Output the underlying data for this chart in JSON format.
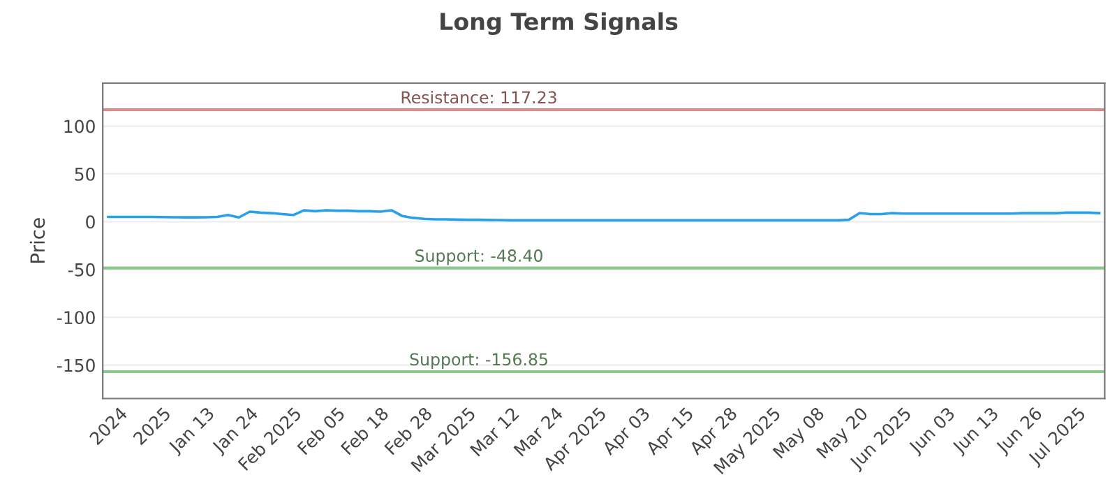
{
  "chart_data": {
    "type": "line",
    "title": "Long Term Signals",
    "ylabel": "Price",
    "categories": [
      null,
      "2024",
      null,
      null,
      null,
      "2025",
      null,
      null,
      null,
      "Jan 13",
      null,
      null,
      null,
      "Jan 24",
      null,
      null,
      null,
      "Feb 2025",
      null,
      null,
      null,
      "Feb 05",
      null,
      null,
      null,
      "Feb 18",
      null,
      null,
      null,
      "Feb 28",
      null,
      null,
      null,
      "Mar 2025",
      null,
      null,
      null,
      "Mar 12",
      null,
      null,
      null,
      "Mar 24",
      null,
      null,
      null,
      "Apr 2025",
      null,
      null,
      null,
      "Apr 03",
      null,
      null,
      null,
      "Apr 15",
      null,
      null,
      null,
      "Apr 28",
      null,
      null,
      null,
      "May 2025",
      null,
      null,
      null,
      "May 08",
      null,
      null,
      null,
      "May 20",
      null,
      null,
      null,
      "Jun 2025",
      null,
      null,
      null,
      "Jun 03",
      null,
      null,
      null,
      "Jun 13",
      null,
      null,
      null,
      "Jun 26",
      null,
      null,
      null,
      "Jul 2025",
      null,
      null
    ],
    "series": [
      {
        "color": "#2aa0e8",
        "values": [
          5,
          5,
          5,
          5,
          5,
          4.8,
          4.7,
          4.6,
          4.6,
          4.7,
          5,
          7,
          4.5,
          10.5,
          9.5,
          9,
          8,
          7,
          12,
          11,
          12,
          11.5,
          11.5,
          11,
          11,
          10.5,
          12,
          6,
          4,
          3,
          2.5,
          2.5,
          2.2,
          2,
          2,
          1.8,
          1.7,
          1.5,
          1.5,
          1.5,
          1.5,
          1.5,
          1.5,
          1.5,
          1.5,
          1.5,
          1.5,
          1.5,
          1.5,
          1.5,
          1.5,
          1.5,
          1.5,
          1.5,
          1.5,
          1.5,
          1.5,
          1.5,
          1.5,
          1.5,
          1.5,
          1.5,
          1.5,
          1.5,
          1.5,
          1.5,
          1.5,
          1.5,
          2,
          9,
          8,
          8,
          9,
          8.5,
          8.5,
          8.5,
          8.5,
          8.5,
          8.5,
          8.5,
          8.5,
          8.5,
          8.5,
          8.5,
          9,
          9,
          9,
          9,
          9.5,
          9.5,
          9.5,
          9
        ]
      }
    ],
    "ylim": [
      -185,
      145
    ],
    "yticks": [
      -150,
      -100,
      -50,
      0,
      50,
      100
    ],
    "grid": "y",
    "marker": "none",
    "line_style": "solid",
    "ref_lines": [
      {
        "axis": "y",
        "value": 117.23,
        "label": "Resistance: 117.23",
        "color": "#e08a8a"
      },
      {
        "axis": "y",
        "value": -48.4,
        "label": "Support: -48.40",
        "color": "#8cc88c"
      },
      {
        "axis": "y",
        "value": -156.85,
        "label": "Support: -156.85",
        "color": "#8cc88c"
      }
    ]
  }
}
